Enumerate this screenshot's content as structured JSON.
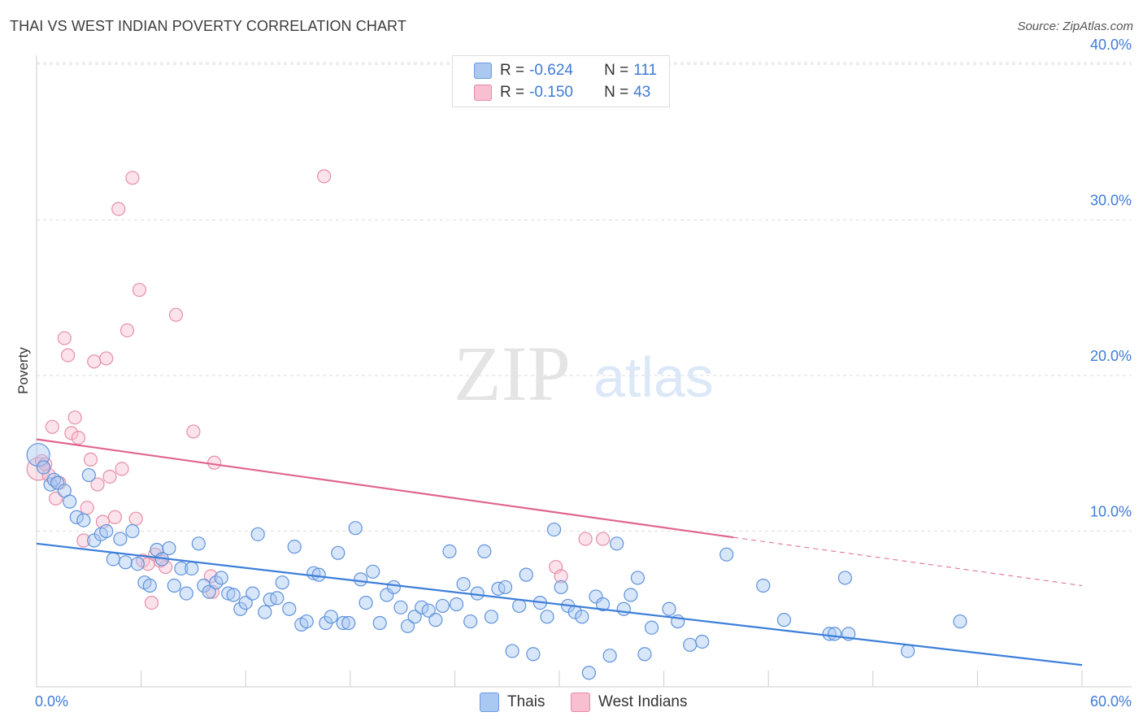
{
  "title": "THAI VS WEST INDIAN POVERTY CORRELATION CHART",
  "source": "Source: ZipAtlas.com",
  "watermark": {
    "zip": "ZIP",
    "atlas": "atlas"
  },
  "legend_top": [
    {
      "r_label": "R =",
      "r_value": "-0.624",
      "n_label": "N =",
      "n_value": "111",
      "color": "#a9c8f2",
      "border": "#6b9be0"
    },
    {
      "r_label": "R =",
      "r_value": "-0.150",
      "n_label": "N =",
      "n_value": "43",
      "color": "#f8bfd0",
      "border": "#e48aa6"
    }
  ],
  "legend_bottom": [
    {
      "label": "Thais",
      "color": "#a9c8f2",
      "border": "#6b9be0"
    },
    {
      "label": "West Indians",
      "color": "#f8bfd0",
      "border": "#e48aa6"
    }
  ],
  "colors": {
    "blue": "#3d7fd9",
    "pink": "#e0648f",
    "tick_text": "#3f7bd6",
    "grid": "#dddddd"
  },
  "chart_data": {
    "type": "scatter",
    "title": "THAI VS WEST INDIAN POVERTY CORRELATION CHART",
    "xlabel": "",
    "ylabel": "Poverty",
    "xlim": [
      0,
      60
    ],
    "ylim": [
      0,
      41
    ],
    "x_tick_labels": [
      "0.0%",
      "60.0%"
    ],
    "y_ticks": [
      10,
      20,
      30,
      40
    ],
    "y_tick_labels": [
      "10.0%",
      "20.0%",
      "30.0%",
      "40.0%"
    ],
    "grid": "horizontal dashed",
    "series": [
      {
        "name": "Thais",
        "color": "#a9c8f2",
        "points": [
          [
            0.1,
            14.9
          ],
          [
            0.4,
            14.1
          ],
          [
            0.8,
            13.0
          ],
          [
            1.0,
            13.3
          ],
          [
            1.2,
            13.1
          ],
          [
            1.6,
            12.6
          ],
          [
            1.9,
            11.9
          ],
          [
            2.3,
            10.9
          ],
          [
            2.7,
            10.7
          ],
          [
            3.0,
            13.6
          ],
          [
            3.3,
            9.4
          ],
          [
            3.7,
            9.8
          ],
          [
            4.0,
            10.0
          ],
          [
            4.4,
            8.2
          ],
          [
            4.8,
            9.5
          ],
          [
            5.1,
            8.0
          ],
          [
            5.5,
            10.0
          ],
          [
            5.8,
            7.9
          ],
          [
            6.2,
            6.7
          ],
          [
            6.5,
            6.5
          ],
          [
            6.9,
            8.8
          ],
          [
            7.2,
            8.2
          ],
          [
            7.6,
            8.9
          ],
          [
            7.9,
            6.5
          ],
          [
            8.3,
            7.6
          ],
          [
            8.6,
            6.0
          ],
          [
            8.9,
            7.6
          ],
          [
            9.3,
            9.2
          ],
          [
            9.6,
            6.5
          ],
          [
            9.9,
            6.1
          ],
          [
            10.3,
            6.7
          ],
          [
            10.6,
            7.0
          ],
          [
            11.0,
            6.0
          ],
          [
            11.3,
            5.9
          ],
          [
            11.7,
            5.0
          ],
          [
            12.0,
            5.4
          ],
          [
            12.4,
            6.0
          ],
          [
            12.7,
            9.8
          ],
          [
            13.1,
            4.8
          ],
          [
            13.4,
            5.6
          ],
          [
            13.8,
            5.7
          ],
          [
            14.1,
            6.7
          ],
          [
            14.5,
            5.0
          ],
          [
            14.8,
            9.0
          ],
          [
            15.2,
            4.0
          ],
          [
            15.5,
            4.2
          ],
          [
            15.9,
            7.3
          ],
          [
            16.2,
            7.2
          ],
          [
            16.6,
            4.1
          ],
          [
            16.9,
            4.5
          ],
          [
            17.3,
            8.6
          ],
          [
            17.6,
            4.1
          ],
          [
            17.9,
            4.1
          ],
          [
            18.3,
            10.2
          ],
          [
            18.6,
            6.9
          ],
          [
            18.9,
            5.4
          ],
          [
            19.3,
            7.4
          ],
          [
            19.7,
            4.1
          ],
          [
            20.1,
            5.9
          ],
          [
            20.5,
            6.4
          ],
          [
            20.9,
            5.1
          ],
          [
            21.3,
            3.9
          ],
          [
            21.7,
            4.5
          ],
          [
            22.1,
            5.1
          ],
          [
            22.5,
            4.9
          ],
          [
            22.9,
            4.3
          ],
          [
            23.3,
            5.2
          ],
          [
            23.7,
            8.7
          ],
          [
            24.1,
            5.3
          ],
          [
            24.5,
            6.6
          ],
          [
            24.9,
            4.2
          ],
          [
            25.3,
            6.0
          ],
          [
            25.7,
            8.7
          ],
          [
            26.1,
            4.5
          ],
          [
            26.5,
            6.3
          ],
          [
            26.9,
            6.4
          ],
          [
            27.3,
            2.3
          ],
          [
            27.7,
            5.2
          ],
          [
            28.1,
            7.2
          ],
          [
            28.5,
            2.1
          ],
          [
            28.9,
            5.4
          ],
          [
            29.3,
            4.5
          ],
          [
            29.7,
            10.1
          ],
          [
            30.1,
            6.4
          ],
          [
            30.5,
            5.2
          ],
          [
            30.9,
            4.8
          ],
          [
            31.3,
            4.5
          ],
          [
            31.7,
            0.9
          ],
          [
            32.1,
            5.8
          ],
          [
            32.5,
            5.3
          ],
          [
            32.9,
            2.0
          ],
          [
            33.3,
            9.2
          ],
          [
            33.7,
            5.0
          ],
          [
            34.1,
            5.9
          ],
          [
            34.5,
            7.0
          ],
          [
            34.9,
            2.1
          ],
          [
            35.3,
            3.8
          ],
          [
            36.3,
            5.0
          ],
          [
            36.8,
            4.2
          ],
          [
            37.5,
            2.7
          ],
          [
            38.2,
            2.9
          ],
          [
            39.6,
            8.5
          ],
          [
            41.7,
            6.5
          ],
          [
            42.9,
            4.3
          ],
          [
            45.5,
            3.4
          ],
          [
            45.8,
            3.4
          ],
          [
            46.4,
            7.0
          ],
          [
            46.6,
            3.4
          ],
          [
            50.0,
            2.3
          ],
          [
            53.0,
            4.2
          ]
        ]
      },
      {
        "name": "West Indians",
        "color": "#f8bfd0",
        "points": [
          [
            0.1,
            14.0
          ],
          [
            0.3,
            14.5
          ],
          [
            0.5,
            14.3
          ],
          [
            0.7,
            13.6
          ],
          [
            0.9,
            16.7
          ],
          [
            1.1,
            12.1
          ],
          [
            1.3,
            13.1
          ],
          [
            1.6,
            22.4
          ],
          [
            1.8,
            21.3
          ],
          [
            2.0,
            16.3
          ],
          [
            2.2,
            17.3
          ],
          [
            2.4,
            16.0
          ],
          [
            2.7,
            9.4
          ],
          [
            2.9,
            11.5
          ],
          [
            3.1,
            14.6
          ],
          [
            3.3,
            20.9
          ],
          [
            3.5,
            13.0
          ],
          [
            3.8,
            10.6
          ],
          [
            4.0,
            21.1
          ],
          [
            4.2,
            13.5
          ],
          [
            4.5,
            10.9
          ],
          [
            4.7,
            30.7
          ],
          [
            4.9,
            14.0
          ],
          [
            5.2,
            22.9
          ],
          [
            5.5,
            32.7
          ],
          [
            5.7,
            10.8
          ],
          [
            5.9,
            25.5
          ],
          [
            6.1,
            8.1
          ],
          [
            6.4,
            7.9
          ],
          [
            6.6,
            5.4
          ],
          [
            6.8,
            8.5
          ],
          [
            7.1,
            8.1
          ],
          [
            7.4,
            7.7
          ],
          [
            8.0,
            23.9
          ],
          [
            9.0,
            16.4
          ],
          [
            10.0,
            7.1
          ],
          [
            10.1,
            6.1
          ],
          [
            10.2,
            14.4
          ],
          [
            16.5,
            32.8
          ],
          [
            29.8,
            7.7
          ],
          [
            30.1,
            7.1
          ],
          [
            31.5,
            9.5
          ],
          [
            32.5,
            9.5
          ]
        ]
      }
    ],
    "trendlines": [
      {
        "series": "Thais",
        "x0": 0,
        "y0": 9.2,
        "x1": 60,
        "y1": 1.4,
        "style": "solid"
      },
      {
        "series": "West Indians",
        "x0": 0,
        "y0": 15.9,
        "x1": 40,
        "y1": 9.6,
        "style": "solid"
      },
      {
        "series": "West Indians",
        "x0": 40,
        "y0": 9.6,
        "x1": 60,
        "y1": 6.5,
        "style": "dashed"
      }
    ]
  }
}
